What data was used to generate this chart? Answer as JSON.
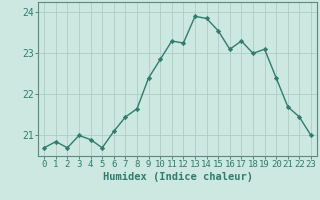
{
  "x": [
    0,
    1,
    2,
    3,
    4,
    5,
    6,
    7,
    8,
    9,
    10,
    11,
    12,
    13,
    14,
    15,
    16,
    17,
    18,
    19,
    20,
    21,
    22,
    23
  ],
  "y": [
    20.7,
    20.85,
    20.7,
    21.0,
    20.9,
    20.7,
    21.1,
    21.45,
    21.65,
    22.4,
    22.85,
    23.3,
    23.25,
    23.9,
    23.85,
    23.55,
    23.1,
    23.3,
    23.0,
    23.1,
    22.4,
    21.7,
    21.45,
    21.0
  ],
  "line_color": "#2e7d6e",
  "marker": "D",
  "marker_size": 2.2,
  "line_width": 1.0,
  "bg_color": "#cce8e0",
  "grid_color": "#b0ccc6",
  "tick_color": "#2e7d6e",
  "spine_color": "#5a8a80",
  "xlabel": "Humidex (Indice chaleur)",
  "ylim": [
    20.5,
    24.25
  ],
  "yticks": [
    21,
    22,
    23,
    24
  ],
  "xtick_labels": [
    "0",
    "1",
    "2",
    "3",
    "4",
    "5",
    "6",
    "7",
    "8",
    "9",
    "10",
    "11",
    "12",
    "13",
    "14",
    "15",
    "16",
    "17",
    "18",
    "19",
    "20",
    "21",
    "22",
    "23"
  ],
  "xlabel_fontsize": 7.5,
  "tick_fontsize": 6.5
}
